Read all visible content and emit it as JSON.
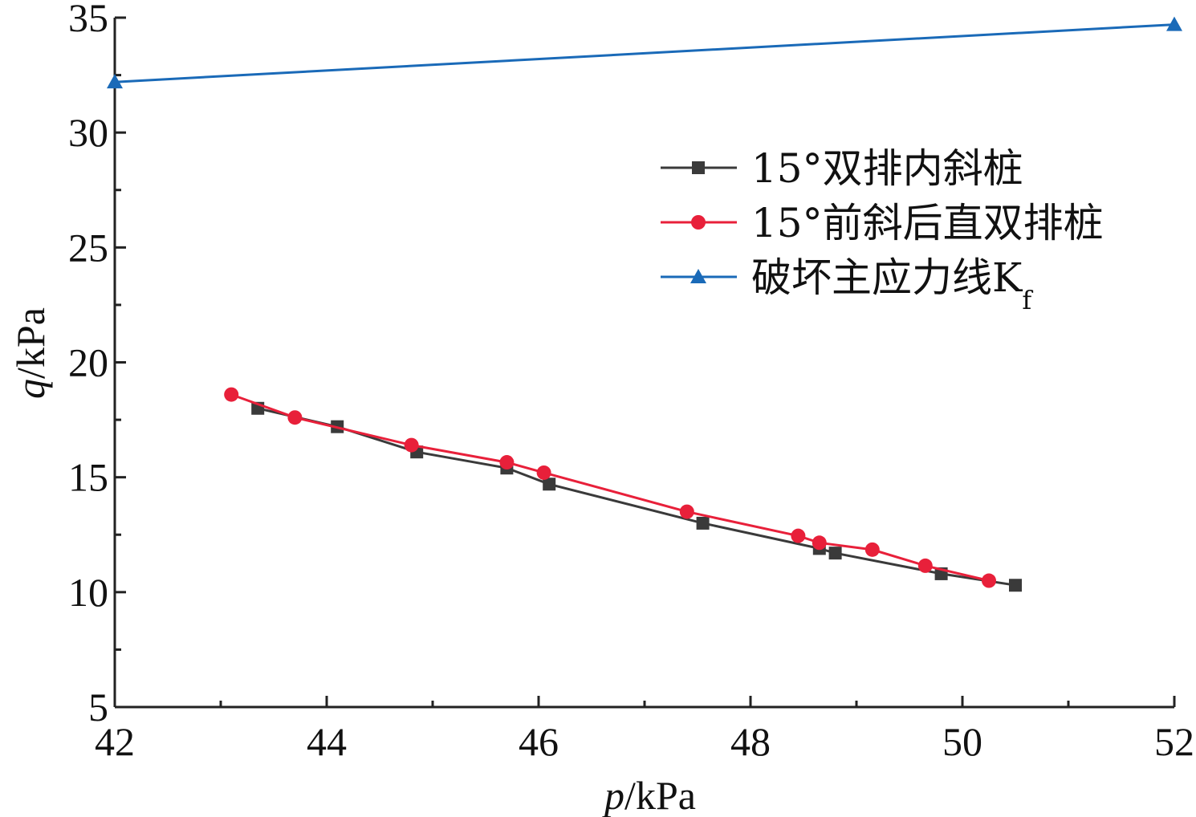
{
  "chart_data": {
    "type": "line",
    "xlabel_var": "p",
    "xlabel_unit": "/kPa",
    "ylabel_var": "q",
    "ylabel_unit": "/kPa",
    "xlim": [
      42,
      52
    ],
    "ylim": [
      5,
      35
    ],
    "xticks": [
      42,
      44,
      46,
      48,
      50,
      52
    ],
    "yticks": [
      5,
      10,
      15,
      20,
      25,
      30,
      35
    ],
    "legend_position": "top-right",
    "grid": false,
    "series": [
      {
        "name": "15°双排内斜桩",
        "color": "#3a3a3a",
        "marker": "square",
        "x": [
          43.35,
          44.1,
          44.85,
          45.7,
          46.1,
          47.55,
          48.65,
          48.8,
          49.8,
          50.5
        ],
        "y": [
          18.0,
          17.2,
          16.1,
          15.4,
          14.7,
          13.0,
          11.9,
          11.7,
          10.8,
          10.3
        ]
      },
      {
        "name": "15°前斜后直双排桩",
        "color": "#e8203a",
        "marker": "circle",
        "x": [
          43.1,
          43.7,
          44.8,
          45.7,
          46.05,
          47.4,
          48.45,
          48.65,
          49.15,
          49.65,
          50.25
        ],
        "y": [
          18.6,
          17.6,
          16.4,
          15.65,
          15.2,
          13.5,
          12.45,
          12.15,
          11.85,
          11.15,
          10.5
        ]
      },
      {
        "name_main": "破坏主应力线K",
        "name_sub": "f",
        "color": "#1a6ab8",
        "marker": "triangle",
        "x": [
          42,
          52
        ],
        "y": [
          32.2,
          34.7
        ]
      }
    ]
  }
}
